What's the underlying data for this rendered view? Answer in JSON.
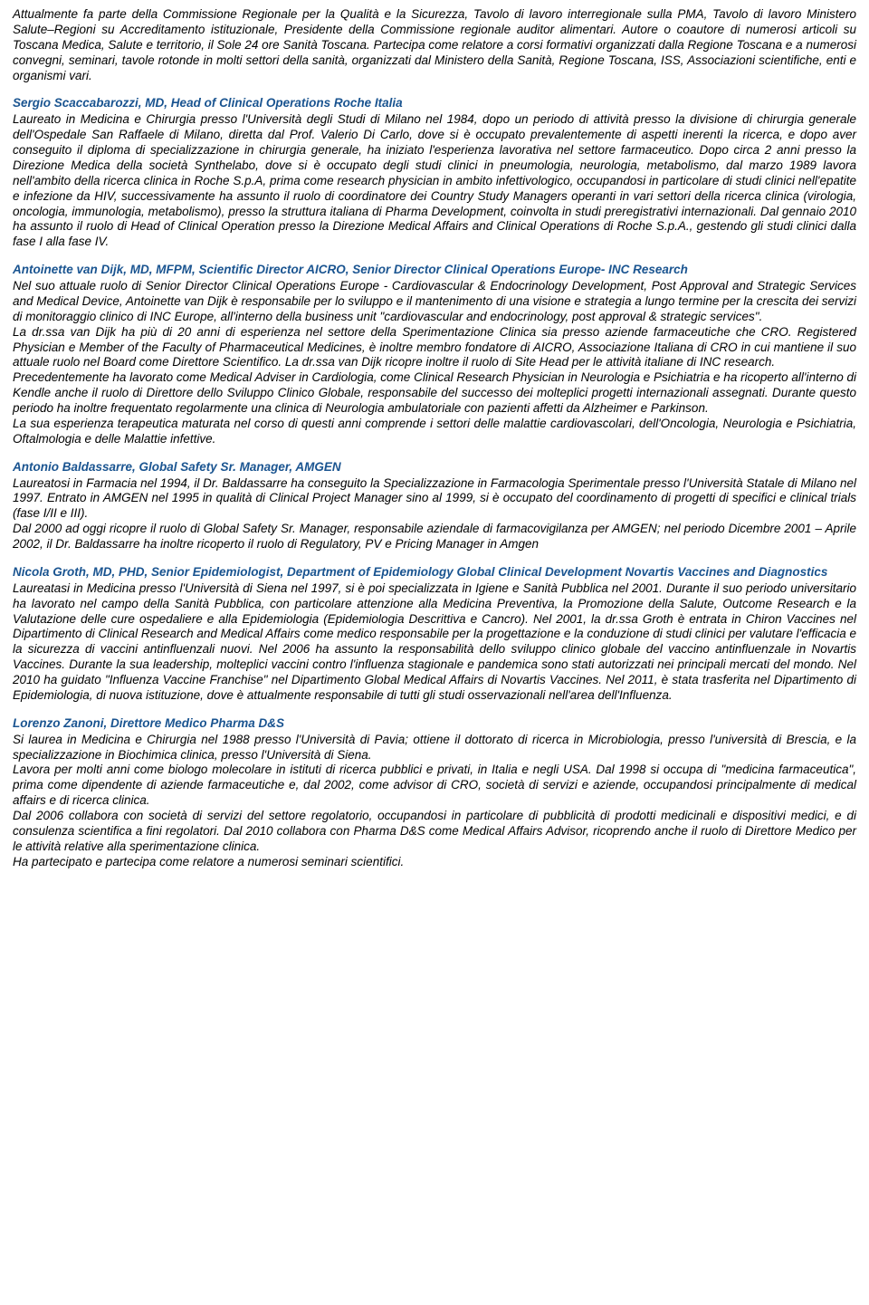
{
  "intro": {
    "p1": "Attualmente fa parte della Commissione Regionale per la Qualità e la Sicurezza, Tavolo di lavoro interregionale sulla PMA, Tavolo di lavoro Ministero Salute–Regioni su Accreditamento istituzionale, Presidente della Commissione regionale auditor alimentari. Autore o coautore di numerosi articoli su Toscana Medica, Salute e territorio, il Sole 24 ore Sanità Toscana. Partecipa come relatore a corsi formativi organizzati dalla Regione Toscana e a numerosi convegni, seminari, tavole rotonde in molti settori della sanità, organizzati dal Ministero della Sanità, Regione Toscana, ISS, Associazioni scientifiche, enti e organismi vari."
  },
  "scaccabarozzi": {
    "heading": "Sergio Scaccabarozzi, MD, Head of Clinical Operations Roche Italia",
    "p1": "Laureato in Medicina e Chirurgia presso l'Università degli Studi di Milano nel 1984, dopo un periodo di attività presso la divisione di chirurgia generale dell'Ospedale San Raffaele di Milano, diretta dal Prof. Valerio Di Carlo, dove si è occupato prevalentemente di aspetti inerenti la ricerca, e dopo aver conseguito il diploma di specializzazione in chirurgia generale, ha iniziato l'esperienza lavorativa nel settore farmaceutico. Dopo circa 2 anni presso la Direzione Medica della società Synthelabo, dove si è occupato degli studi clinici in pneumologia, neurologia, metabolismo, dal marzo 1989 lavora nell'ambito della ricerca clinica in Roche S.p.A, prima come research physician in ambito infettivologico, occupandosi in particolare di studi clinici nell'epatite e infezione da HIV, successivamente ha assunto il ruolo di coordinatore dei Country Study Managers operanti in vari settori della ricerca clinica (virologia, oncologia, immunologia, metabolismo), presso la struttura italiana di Pharma Development, coinvolta in studi preregistrativi internazionali. Dal gennaio 2010 ha assunto il ruolo di Head of Clinical Operation presso la Direzione Medical Affairs and Clinical Operations di Roche S.p.A., gestendo gli studi clinici dalla fase I alla fase IV."
  },
  "vandijk": {
    "heading": "Antoinette van Dijk, MD, MFPM, Scientific Director AICRO, Senior Director Clinical Operations Europe- INC Research",
    "p1": "Nel suo attuale ruolo di Senior Director Clinical Operations Europe - Cardiovascular & Endocrinology Development, Post Approval and Strategic Services and Medical Device, Antoinette van Dijk è responsabile per lo sviluppo e il mantenimento di una visione e strategia a lungo termine per la crescita dei servizi di monitoraggio clinico di INC Europe, all'interno della business unit \"cardiovascular and endocrinology, post approval & strategic services\".",
    "p2": "La dr.ssa van Dijk ha più di 20 anni di esperienza nel settore della Sperimentazione Clinica sia presso aziende farmaceutiche che CRO. Registered Physician e Member of the Faculty of Pharmaceutical Medicines, è inoltre membro fondatore di AICRO, Associazione Italiana di CRO in cui mantiene il suo attuale ruolo nel Board come Direttore Scientifico. La dr.ssa van Dijk ricopre inoltre il ruolo di Site Head per le attività italiane di INC research.",
    "p3": "Precedentemente ha lavorato come Medical Adviser in Cardiologia, come Clinical Research Physician in Neurologia e Psichiatria e ha ricoperto all'interno di Kendle anche il ruolo di Direttore dello Sviluppo Clinico Globale, responsabile del successo dei molteplici progetti internazionali assegnati. Durante questo periodo ha inoltre frequentato regolarmente una clinica di Neurologia ambulatoriale con pazienti affetti da Alzheimer e Parkinson.",
    "p4": "La sua esperienza terapeutica maturata nel corso di questi anni comprende i settori delle malattie cardiovascolari, dell'Oncologia, Neurologia e Psichiatria, Oftalmologia e delle Malattie infettive."
  },
  "baldassarre": {
    "heading": "Antonio Baldassarre, Global Safety Sr. Manager, AMGEN",
    "p1": "Laureatosi in Farmacia nel 1994, il Dr. Baldassarre ha conseguito la Specializzazione in Farmacologia Sperimentale presso l'Università Statale di Milano nel 1997. Entrato in AMGEN nel 1995 in qualità di Clinical Project Manager sino al 1999, si è occupato del coordinamento di progetti di specifici e clinical trials (fase I/II e III).",
    "p2": "Dal 2000 ad oggi ricopre il ruolo di Global Safety Sr. Manager, responsabile aziendale di farmacovigilanza per AMGEN; nel periodo Dicembre 2001 – Aprile 2002, il Dr. Baldassarre ha inoltre ricoperto il ruolo di Regulatory, PV e Pricing Manager in Amgen"
  },
  "groth": {
    "heading": "Nicola Groth, MD, PHD, Senior Epidemiologist, Department of Epidemiology Global Clinical Development Novartis Vaccines and Diagnostics",
    "p1": "Laureatasi in Medicina presso l'Università di Siena nel 1997, si è poi specializzata in Igiene e Sanità Pubblica nel 2001. Durante il suo periodo universitario ha lavorato nel campo della Sanità Pubblica, con particolare attenzione alla Medicina Preventiva, la Promozione della Salute, Outcome Research e la Valutazione delle cure ospedaliere e alla Epidemiologia (Epidemiologia Descrittiva e Cancro). Nel 2001, la dr.ssa Groth è entrata in Chiron Vaccines nel Dipartimento di Clinical Research and Medical Affairs come medico responsabile per la progettazione e la conduzione di studi clinici per valutare l'efficacia e la sicurezza di vaccini antinfluenzali nuovi. Nel 2006 ha assunto la responsabilità dello sviluppo clinico globale del vaccino antinfluenzale in Novartis Vaccines. Durante la sua leadership, molteplici vaccini contro l'influenza stagionale e pandemica sono stati autorizzati nei principali mercati del mondo. Nel 2010 ha guidato \"Influenza Vaccine Franchise\" nel Dipartimento Global Medical Affairs di Novartis Vaccines. Nel 2011, è stata trasferita nel Dipartimento di Epidemiologia, di nuova istituzione, dove è attualmente responsabile di tutti gli studi osservazionali nell'area dell'Influenza."
  },
  "zanoni": {
    "heading": "Lorenzo Zanoni, Direttore Medico Pharma D&S",
    "p1": "Si laurea in Medicina e Chirurgia nel 1988 presso l'Università di Pavia; ottiene il dottorato di ricerca in Microbiologia, presso l'università di Brescia, e la specializzazione in Biochimica clinica, presso l'Università di Siena.",
    "p2": "Lavora per molti anni come biologo molecolare in istituti di ricerca pubblici e privati, in Italia e negli USA. Dal 1998 si occupa di \"medicina farmaceutica\", prima come dipendente di aziende farmaceutiche e, dal 2002, come advisor di CRO, società di servizi e aziende, occupandosi principalmente di medical affairs e di ricerca clinica.",
    "p3": "Dal 2006 collabora con società di servizi del settore regolatorio, occupandosi in particolare di pubblicità di prodotti medicinali e dispositivi medici, e di consulenza scientifica a fini regolatori. Dal 2010 collabora con Pharma D&S come Medical Affairs Advisor, ricoprendo anche il ruolo di Direttore Medico per le attività relative alla sperimentazione clinica.",
    "p4": "Ha partecipato e partecipa come relatore a numerosi seminari scientifici."
  }
}
